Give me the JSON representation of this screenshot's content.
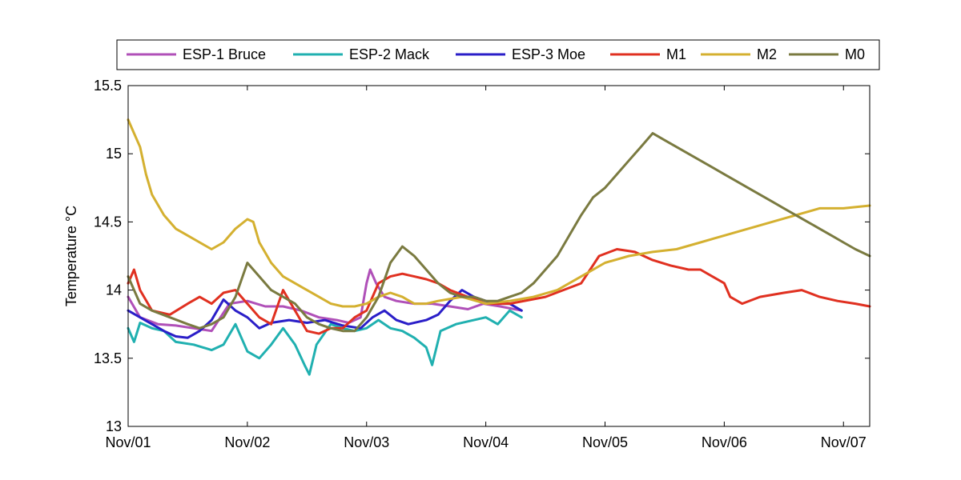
{
  "chart_data": {
    "type": "line",
    "ylabel": "Temperature °C",
    "xlabel": "",
    "title": "",
    "grid": false,
    "legend_position": "top, horizontal, above plot",
    "x_unit": "days since Nov/01",
    "xlim": [
      0,
      6.22
    ],
    "ylim": [
      13,
      15.5
    ],
    "xticks": [
      {
        "value": 0,
        "label": "Nov/01"
      },
      {
        "value": 1,
        "label": "Nov/02"
      },
      {
        "value": 2,
        "label": "Nov/03"
      },
      {
        "value": 3,
        "label": "Nov/04"
      },
      {
        "value": 4,
        "label": "Nov/05"
      },
      {
        "value": 5,
        "label": "Nov/06"
      },
      {
        "value": 6,
        "label": "Nov/07"
      }
    ],
    "yticks": [
      {
        "value": 13,
        "label": "13"
      },
      {
        "value": 13.5,
        "label": "13.5"
      },
      {
        "value": 14,
        "label": "14"
      },
      {
        "value": 14.5,
        "label": "14.5"
      },
      {
        "value": 15,
        "label": "15"
      },
      {
        "value": 15.5,
        "label": "15.5"
      }
    ],
    "series": [
      {
        "name": "ESP-1 Bruce",
        "color": "#B050B8",
        "points": [
          [
            0,
            13.95
          ],
          [
            0.1,
            13.8
          ],
          [
            0.25,
            13.75
          ],
          [
            0.4,
            13.74
          ],
          [
            0.55,
            13.72
          ],
          [
            0.7,
            13.7
          ],
          [
            0.85,
            13.9
          ],
          [
            1.0,
            13.92
          ],
          [
            1.15,
            13.88
          ],
          [
            1.3,
            13.88
          ],
          [
            1.45,
            13.85
          ],
          [
            1.6,
            13.8
          ],
          [
            1.75,
            13.78
          ],
          [
            1.85,
            13.76
          ],
          [
            1.95,
            13.8
          ],
          [
            2.0,
            14.05
          ],
          [
            2.03,
            14.15
          ],
          [
            2.08,
            14.05
          ],
          [
            2.15,
            13.95
          ],
          [
            2.25,
            13.92
          ],
          [
            2.4,
            13.9
          ],
          [
            2.55,
            13.9
          ],
          [
            2.7,
            13.88
          ],
          [
            2.85,
            13.86
          ],
          [
            2.98,
            13.9
          ],
          [
            3.12,
            13.88
          ],
          [
            3.3,
            13.85
          ]
        ]
      },
      {
        "name": "ESP-2 Mack",
        "color": "#20B0B0",
        "points": [
          [
            0,
            13.72
          ],
          [
            0.05,
            13.62
          ],
          [
            0.1,
            13.76
          ],
          [
            0.2,
            13.72
          ],
          [
            0.3,
            13.7
          ],
          [
            0.4,
            13.62
          ],
          [
            0.55,
            13.6
          ],
          [
            0.7,
            13.56
          ],
          [
            0.8,
            13.6
          ],
          [
            0.9,
            13.75
          ],
          [
            1.0,
            13.55
          ],
          [
            1.1,
            13.5
          ],
          [
            1.2,
            13.6
          ],
          [
            1.3,
            13.72
          ],
          [
            1.4,
            13.6
          ],
          [
            1.48,
            13.45
          ],
          [
            1.52,
            13.38
          ],
          [
            1.58,
            13.6
          ],
          [
            1.7,
            13.75
          ],
          [
            1.8,
            13.72
          ],
          [
            1.9,
            13.7
          ],
          [
            2.0,
            13.72
          ],
          [
            2.1,
            13.78
          ],
          [
            2.2,
            13.72
          ],
          [
            2.3,
            13.7
          ],
          [
            2.4,
            13.65
          ],
          [
            2.5,
            13.58
          ],
          [
            2.55,
            13.45
          ],
          [
            2.62,
            13.7
          ],
          [
            2.75,
            13.75
          ],
          [
            2.9,
            13.78
          ],
          [
            3.0,
            13.8
          ],
          [
            3.1,
            13.75
          ],
          [
            3.2,
            13.85
          ],
          [
            3.3,
            13.8
          ]
        ]
      },
      {
        "name": "ESP-3 Moe",
        "color": "#2A1EC8",
        "points": [
          [
            0,
            13.85
          ],
          [
            0.1,
            13.8
          ],
          [
            0.2,
            13.75
          ],
          [
            0.3,
            13.7
          ],
          [
            0.4,
            13.66
          ],
          [
            0.5,
            13.65
          ],
          [
            0.6,
            13.7
          ],
          [
            0.7,
            13.78
          ],
          [
            0.8,
            13.93
          ],
          [
            0.9,
            13.85
          ],
          [
            1.0,
            13.8
          ],
          [
            1.1,
            13.72
          ],
          [
            1.2,
            13.76
          ],
          [
            1.35,
            13.78
          ],
          [
            1.5,
            13.76
          ],
          [
            1.65,
            13.78
          ],
          [
            1.8,
            13.74
          ],
          [
            1.95,
            13.72
          ],
          [
            2.05,
            13.8
          ],
          [
            2.15,
            13.85
          ],
          [
            2.25,
            13.78
          ],
          [
            2.35,
            13.75
          ],
          [
            2.5,
            13.78
          ],
          [
            2.6,
            13.82
          ],
          [
            2.7,
            13.92
          ],
          [
            2.8,
            14.0
          ],
          [
            2.9,
            13.95
          ],
          [
            3.0,
            13.92
          ],
          [
            3.1,
            13.9
          ],
          [
            3.2,
            13.9
          ],
          [
            3.3,
            13.85
          ]
        ]
      },
      {
        "name": "M1",
        "color": "#E03020",
        "points": [
          [
            0,
            14.05
          ],
          [
            0.05,
            14.15
          ],
          [
            0.1,
            14.0
          ],
          [
            0.2,
            13.85
          ],
          [
            0.35,
            13.82
          ],
          [
            0.5,
            13.9
          ],
          [
            0.6,
            13.95
          ],
          [
            0.7,
            13.9
          ],
          [
            0.8,
            13.98
          ],
          [
            0.9,
            14.0
          ],
          [
            1.0,
            13.9
          ],
          [
            1.1,
            13.8
          ],
          [
            1.2,
            13.75
          ],
          [
            1.3,
            14.0
          ],
          [
            1.4,
            13.85
          ],
          [
            1.5,
            13.7
          ],
          [
            1.6,
            13.68
          ],
          [
            1.7,
            13.72
          ],
          [
            1.8,
            13.72
          ],
          [
            1.9,
            13.8
          ],
          [
            2.0,
            13.85
          ],
          [
            2.1,
            14.05
          ],
          [
            2.2,
            14.1
          ],
          [
            2.3,
            14.12
          ],
          [
            2.4,
            14.1
          ],
          [
            2.5,
            14.08
          ],
          [
            2.6,
            14.05
          ],
          [
            2.7,
            14.0
          ],
          [
            2.85,
            13.95
          ],
          [
            3.0,
            13.9
          ],
          [
            3.2,
            13.9
          ],
          [
            3.5,
            13.95
          ],
          [
            3.8,
            14.05
          ],
          [
            3.95,
            14.25
          ],
          [
            4.1,
            14.3
          ],
          [
            4.25,
            14.28
          ],
          [
            4.4,
            14.22
          ],
          [
            4.55,
            14.18
          ],
          [
            4.7,
            14.15
          ],
          [
            4.8,
            14.15
          ],
          [
            4.9,
            14.1
          ],
          [
            5.0,
            14.05
          ],
          [
            5.05,
            13.95
          ],
          [
            5.15,
            13.9
          ],
          [
            5.3,
            13.95
          ],
          [
            5.5,
            13.98
          ],
          [
            5.65,
            14.0
          ],
          [
            5.8,
            13.95
          ],
          [
            5.95,
            13.92
          ],
          [
            6.1,
            13.9
          ],
          [
            6.22,
            13.88
          ]
        ]
      },
      {
        "name": "M2",
        "color": "#D4B030",
        "points": [
          [
            0,
            15.25
          ],
          [
            0.05,
            15.15
          ],
          [
            0.1,
            15.05
          ],
          [
            0.15,
            14.85
          ],
          [
            0.2,
            14.7
          ],
          [
            0.3,
            14.55
          ],
          [
            0.4,
            14.45
          ],
          [
            0.5,
            14.4
          ],
          [
            0.6,
            14.35
          ],
          [
            0.7,
            14.3
          ],
          [
            0.8,
            14.35
          ],
          [
            0.9,
            14.45
          ],
          [
            1.0,
            14.52
          ],
          [
            1.05,
            14.5
          ],
          [
            1.1,
            14.35
          ],
          [
            1.2,
            14.2
          ],
          [
            1.3,
            14.1
          ],
          [
            1.4,
            14.05
          ],
          [
            1.5,
            14.0
          ],
          [
            1.6,
            13.95
          ],
          [
            1.7,
            13.9
          ],
          [
            1.8,
            13.88
          ],
          [
            1.9,
            13.88
          ],
          [
            2.0,
            13.9
          ],
          [
            2.1,
            13.95
          ],
          [
            2.2,
            13.98
          ],
          [
            2.3,
            13.95
          ],
          [
            2.4,
            13.9
          ],
          [
            2.5,
            13.9
          ],
          [
            2.6,
            13.92
          ],
          [
            2.8,
            13.95
          ],
          [
            3.0,
            13.9
          ],
          [
            3.2,
            13.92
          ],
          [
            3.4,
            13.95
          ],
          [
            3.6,
            14.0
          ],
          [
            3.8,
            14.1
          ],
          [
            4.0,
            14.2
          ],
          [
            4.2,
            14.25
          ],
          [
            4.4,
            14.28
          ],
          [
            4.6,
            14.3
          ],
          [
            4.8,
            14.35
          ],
          [
            5.0,
            14.4
          ],
          [
            5.2,
            14.45
          ],
          [
            5.4,
            14.5
          ],
          [
            5.6,
            14.55
          ],
          [
            5.8,
            14.6
          ],
          [
            6.0,
            14.6
          ],
          [
            6.22,
            14.62
          ]
        ]
      },
      {
        "name": "M0",
        "color": "#7A7A40",
        "points": [
          [
            0,
            14.1
          ],
          [
            0.1,
            13.9
          ],
          [
            0.2,
            13.85
          ],
          [
            0.35,
            13.8
          ],
          [
            0.5,
            13.75
          ],
          [
            0.6,
            13.72
          ],
          [
            0.7,
            13.75
          ],
          [
            0.8,
            13.8
          ],
          [
            0.9,
            13.95
          ],
          [
            1.0,
            14.2
          ],
          [
            1.1,
            14.1
          ],
          [
            1.2,
            14.0
          ],
          [
            1.3,
            13.95
          ],
          [
            1.4,
            13.9
          ],
          [
            1.5,
            13.8
          ],
          [
            1.6,
            13.75
          ],
          [
            1.7,
            13.72
          ],
          [
            1.8,
            13.7
          ],
          [
            1.9,
            13.7
          ],
          [
            2.0,
            13.8
          ],
          [
            2.1,
            13.95
          ],
          [
            2.2,
            14.2
          ],
          [
            2.3,
            14.32
          ],
          [
            2.4,
            14.25
          ],
          [
            2.5,
            14.15
          ],
          [
            2.6,
            14.05
          ],
          [
            2.7,
            13.98
          ],
          [
            2.8,
            13.95
          ],
          [
            2.9,
            13.95
          ],
          [
            3.0,
            13.92
          ],
          [
            3.1,
            13.92
          ],
          [
            3.2,
            13.95
          ],
          [
            3.3,
            13.98
          ],
          [
            3.4,
            14.05
          ],
          [
            3.5,
            14.15
          ],
          [
            3.6,
            14.25
          ],
          [
            3.7,
            14.4
          ],
          [
            3.8,
            14.55
          ],
          [
            3.9,
            14.68
          ],
          [
            4.0,
            14.75
          ],
          [
            4.1,
            14.85
          ],
          [
            4.2,
            14.95
          ],
          [
            4.3,
            15.05
          ],
          [
            4.4,
            15.15
          ],
          [
            4.5,
            15.1
          ],
          [
            4.6,
            15.05
          ],
          [
            4.7,
            15.0
          ],
          [
            4.8,
            14.95
          ],
          [
            4.9,
            14.9
          ],
          [
            5.0,
            14.85
          ],
          [
            5.1,
            14.8
          ],
          [
            5.2,
            14.75
          ],
          [
            5.3,
            14.7
          ],
          [
            5.4,
            14.65
          ],
          [
            5.5,
            14.6
          ],
          [
            5.6,
            14.55
          ],
          [
            5.7,
            14.5
          ],
          [
            5.8,
            14.45
          ],
          [
            5.9,
            14.4
          ],
          [
            6.0,
            14.35
          ],
          [
            6.1,
            14.3
          ],
          [
            6.22,
            14.25
          ]
        ]
      }
    ]
  }
}
